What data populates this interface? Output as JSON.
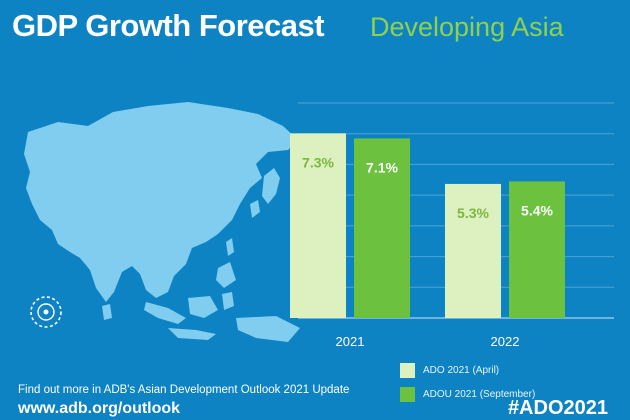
{
  "header": {
    "title": "GDP Growth Forecast",
    "subtitle": "Developing Asia"
  },
  "colors": {
    "background": "#0d83c4",
    "ado_april": "#dcf0c0",
    "adou_september": "#6cc13f",
    "subtitle": "#8fd14f",
    "map": "#80cdef"
  },
  "chart_data": {
    "type": "bar",
    "categories": [
      "2021",
      "2022"
    ],
    "series": [
      {
        "name": "ADO 2021 (April)",
        "values": [
          7.3,
          5.3
        ],
        "labels": [
          "7.3%",
          "5.3%"
        ],
        "color": "#dcf0c0"
      },
      {
        "name": "ADOU 2021 (September)",
        "values": [
          7.1,
          5.4
        ],
        "labels": [
          "7.1%",
          "5.4%"
        ],
        "color": "#6cc13f"
      }
    ],
    "ylim": [
      0,
      8.5
    ],
    "grid": true,
    "legend_position": "bottom"
  },
  "footer": {
    "note": "Find out more in ADB's Asian Development Outlook 2021 Update",
    "url": "www.adb.org/outlook",
    "hashtag": "#ADO2021"
  },
  "icons": {
    "map": "asia-map-icon",
    "logo": "adb-logo-icon"
  }
}
